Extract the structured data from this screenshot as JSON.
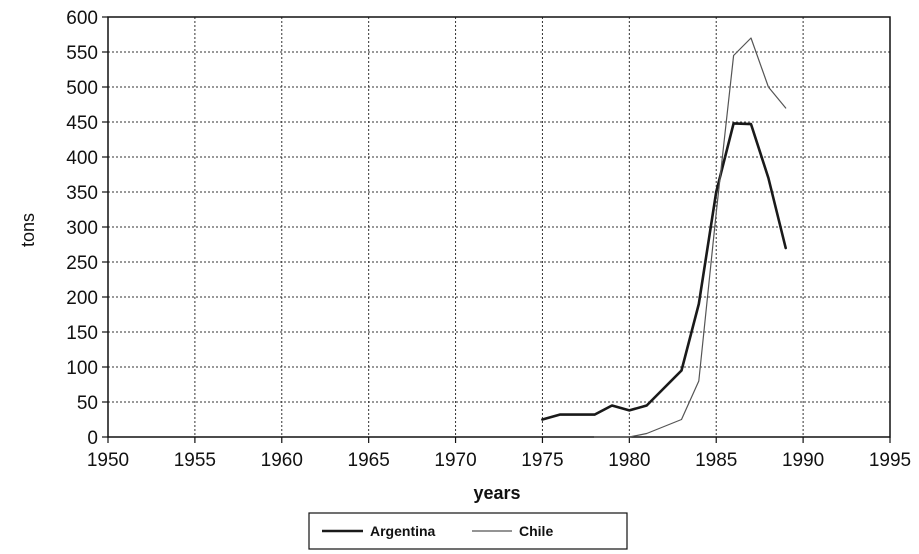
{
  "chart_data": {
    "type": "line",
    "title": "",
    "xlabel": "years",
    "ylabel": "tons",
    "xlim": [
      1950,
      1995
    ],
    "ylim": [
      0,
      600
    ],
    "x_ticks": [
      1950,
      1955,
      1960,
      1965,
      1970,
      1975,
      1980,
      1985,
      1990,
      1995
    ],
    "y_ticks": [
      0,
      50,
      100,
      150,
      200,
      250,
      300,
      350,
      400,
      450,
      500,
      550,
      600
    ],
    "grid": true,
    "legend_position": "bottom-center",
    "series": [
      {
        "name": "Argentina",
        "color": "#1a1a1a",
        "x": [
          1975,
          1976,
          1977,
          1978,
          1979,
          1980,
          1981,
          1982,
          1983,
          1984,
          1985,
          1986,
          1987,
          1988,
          1989
        ],
        "y": [
          25,
          32,
          32,
          32,
          45,
          38,
          45,
          70,
          95,
          190,
          350,
          448,
          447,
          370,
          270
        ]
      },
      {
        "name": "Chile",
        "color": "#555555",
        "x": [
          1978,
          1979,
          1980,
          1981,
          1982,
          1983,
          1984,
          1985,
          1986,
          1987,
          1988,
          1989
        ],
        "y": [
          0,
          0,
          0,
          5,
          15,
          25,
          80,
          320,
          545,
          570,
          500,
          470
        ]
      }
    ]
  }
}
